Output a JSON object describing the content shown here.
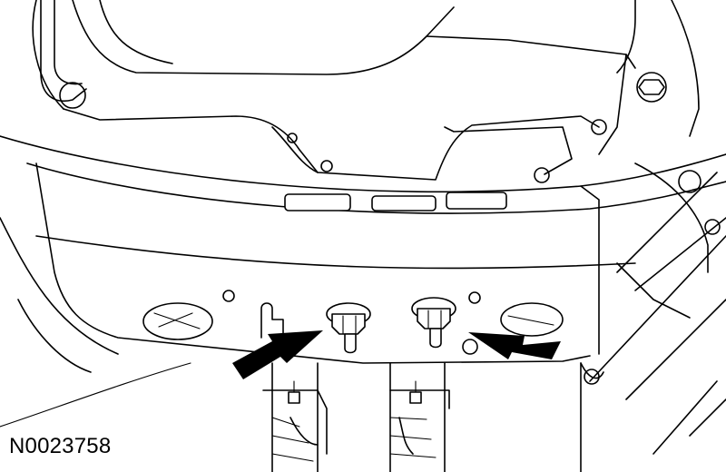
{
  "figure": {
    "id_label": "N0023758",
    "subject": "two-nuts",
    "callouts": [
      "left-arrow",
      "right-arrow"
    ],
    "line_color": "#000000",
    "background_color": "#ffffff"
  }
}
